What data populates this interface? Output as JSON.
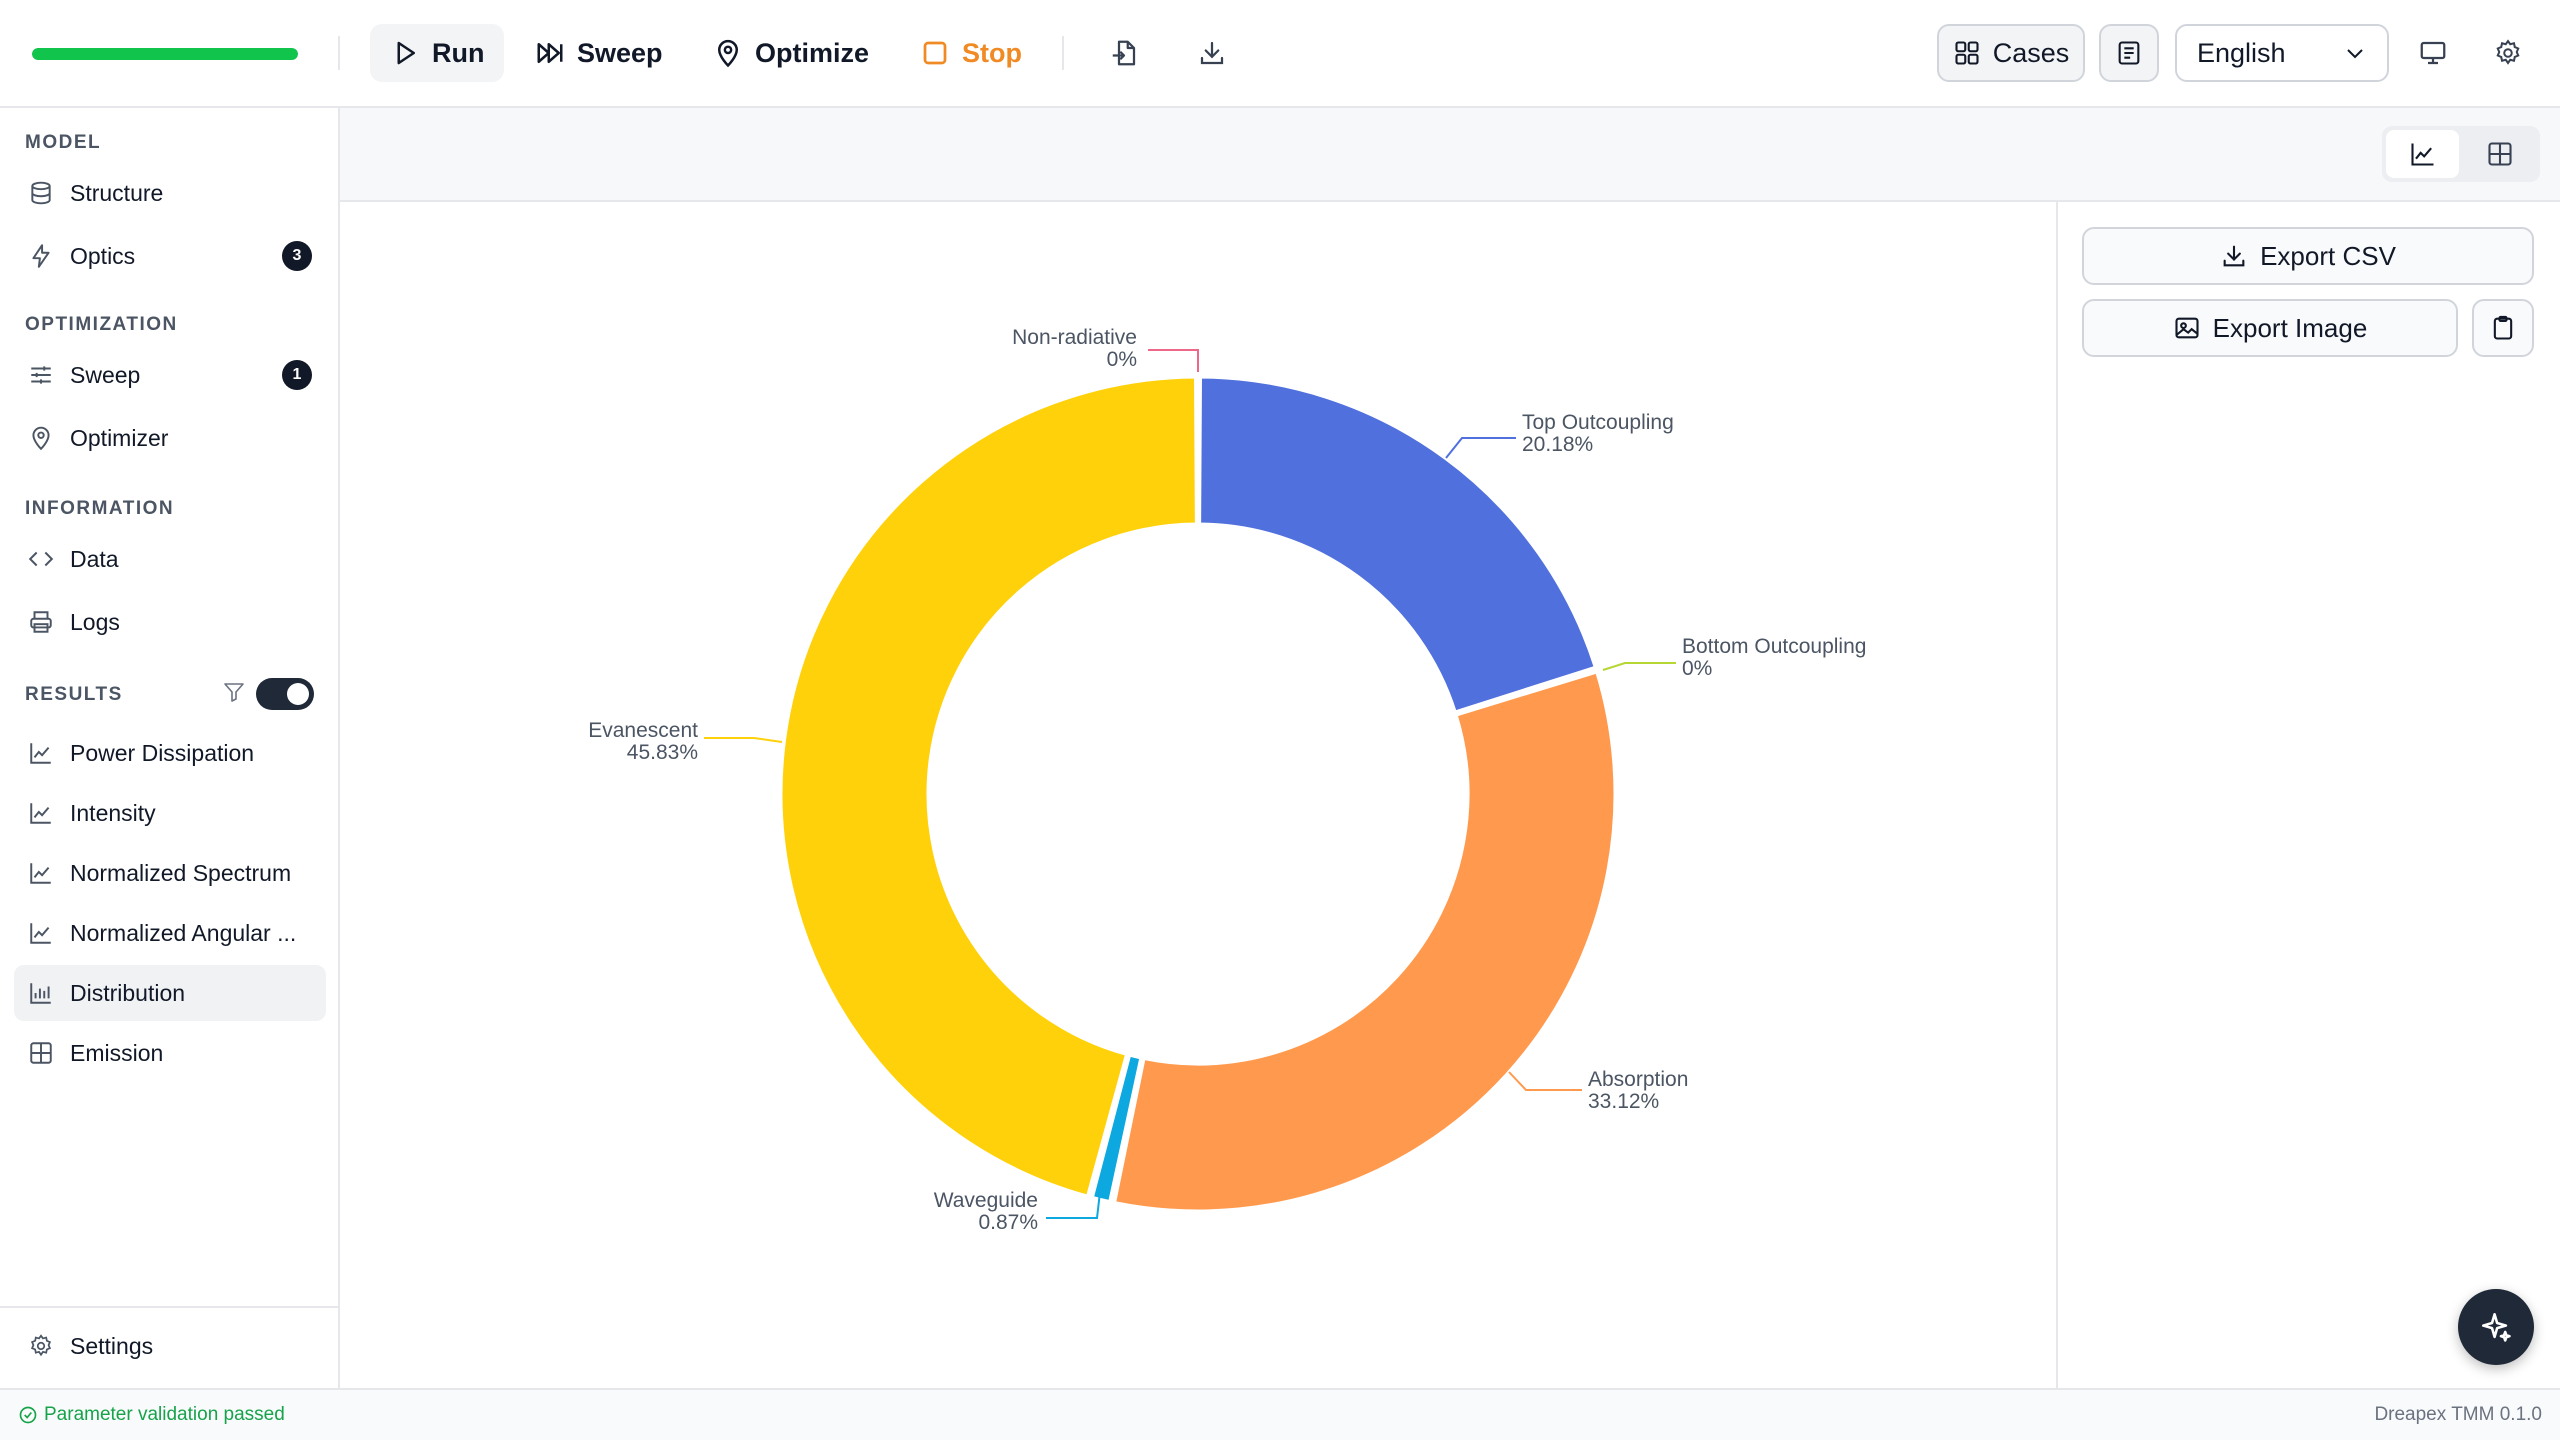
{
  "toolbar": {
    "progress_fraction": 1.0,
    "progress_color": "#10c44c",
    "run_label": "Run",
    "sweep_label": "Sweep",
    "optimize_label": "Optimize",
    "stop_label": "Stop",
    "import_icon": "file-import-icon",
    "download_icon": "download-icon",
    "cases_label": "Cases",
    "doc_icon": "document-icon",
    "language": "English",
    "monitor_icon": "monitor-icon",
    "settings_icon": "gear-icon"
  },
  "sidebar": {
    "sections": {
      "model": "MODEL",
      "optimization": "OPTIMIZATION",
      "information": "INFORMATION",
      "results": "RESULTS"
    },
    "model_items": [
      {
        "label": "Structure",
        "icon": "database-icon"
      },
      {
        "label": "Optics",
        "icon": "lightning-icon",
        "badge": "3"
      }
    ],
    "optimization_items": [
      {
        "label": "Sweep",
        "icon": "sliders-icon",
        "badge": "1"
      },
      {
        "label": "Optimizer",
        "icon": "map-pin-icon"
      }
    ],
    "information_items": [
      {
        "label": "Data",
        "icon": "code-icon"
      },
      {
        "label": "Logs",
        "icon": "printer-icon"
      }
    ],
    "results_filter_on": true,
    "results_items": [
      {
        "label": "Power Dissipation",
        "icon": "line-chart-icon"
      },
      {
        "label": "Intensity",
        "icon": "line-chart-icon"
      },
      {
        "label": "Normalized Spectrum",
        "icon": "line-chart-icon"
      },
      {
        "label": "Normalized Angular ...",
        "icon": "line-chart-icon"
      },
      {
        "label": "Distribution",
        "icon": "bar-chart-icon",
        "active": true
      },
      {
        "label": "Emission",
        "icon": "grid-icon"
      }
    ],
    "settings_label": "Settings"
  },
  "panel": {
    "export_csv": "Export CSV",
    "export_image": "Export Image"
  },
  "status": {
    "message": "Parameter validation passed",
    "version": "Dreapex TMM 0.1.0"
  },
  "chart_data": {
    "type": "pie",
    "donut": true,
    "legend": "none",
    "categories": [
      "Non-radiative",
      "Top Outcoupling",
      "Bottom Outcoupling",
      "Absorption",
      "Waveguide",
      "Evanescent"
    ],
    "values": [
      0,
      20.18,
      0,
      33.12,
      0.87,
      45.83
    ],
    "value_labels": [
      "0%",
      "20.18%",
      "0%",
      "33.12%",
      "0.87%",
      "45.83%"
    ],
    "colors": [
      "#ee6688",
      "#5070dd",
      "#b6d634",
      "#ff994d",
      "#0ca8df",
      "#ffd10a"
    ]
  }
}
